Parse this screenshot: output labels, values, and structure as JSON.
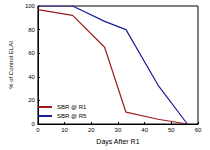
{
  "chart_data": {
    "type": "line",
    "x_label": "Days After R1",
    "y_label": "% of Control ELAI",
    "x": [
      0,
      13,
      25,
      33,
      45,
      56
    ],
    "series": [
      {
        "name": "SBR @ R1",
        "color": "#9b1c1c",
        "values": [
          97,
          92,
          65,
          10,
          4,
          0
        ]
      },
      {
        "name": "SBR @ R5",
        "color": "#1c1c9b",
        "values": [
          100,
          100,
          87,
          80,
          33,
          0
        ]
      }
    ],
    "xlim": [
      0,
      60
    ],
    "xticks": [
      0,
      10,
      20,
      30,
      40,
      50,
      60
    ],
    "ylim": [
      0,
      100
    ],
    "yticks": [
      0,
      20,
      40,
      60,
      80,
      100
    ],
    "grid": false,
    "legend": "lower left"
  }
}
